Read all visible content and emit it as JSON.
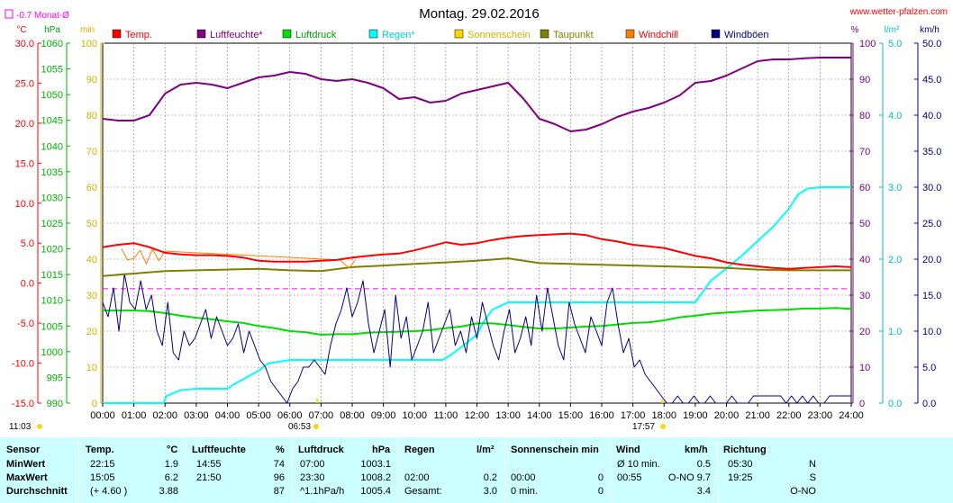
{
  "title": "Montag. 29.02.2016",
  "site": "www.wetter-pfalzen.com",
  "monat_label": "-0.7 Monat-Ø",
  "colors": {
    "temp": "#ff0000",
    "humidity": "#800080",
    "pressure": "#00dd00",
    "rain": "#00ffff",
    "sun": "#ffd700",
    "dew": "#808000",
    "windchill": "#ff8000",
    "gust": "#000080",
    "monat": "#ff00ff",
    "table_bg": "#ccffff"
  },
  "legend": [
    {
      "label": "Temp.",
      "color": "#ff0000",
      "text_color": "#ff0000"
    },
    {
      "label": "Luftfeuchte*",
      "color": "#800080",
      "text_color": "#800080"
    },
    {
      "label": "Luftdruck",
      "color": "#00dd00",
      "text_color": "#00a000"
    },
    {
      "label": "Regen*",
      "color": "#00ffff",
      "text_color": "#00d0d0"
    },
    {
      "label": "Sonnenschein",
      "color": "#ffd700",
      "text_color": "#d4b000"
    },
    {
      "label": "Taupunkt",
      "color": "#808000",
      "text_color": "#808000"
    },
    {
      "label": "Windchill",
      "color": "#ff8000",
      "text_color": "#ff0000"
    },
    {
      "label": "Windböen",
      "color": "#000080",
      "text_color": "#000080"
    }
  ],
  "axes": {
    "temp": {
      "unit": "°C",
      "ticks": [
        "30.0",
        "25.0",
        "20.0",
        "15.0",
        "10.0",
        "5.0",
        "0.0",
        "-5.0",
        "-10.0",
        "-15.0"
      ],
      "min": -15,
      "max": 30
    },
    "pressure": {
      "unit": "hPa",
      "ticks": [
        "1060",
        "1055",
        "1050",
        "1045",
        "1040",
        "1035",
        "1030",
        "1025",
        "1020",
        "1015",
        "1010",
        "1005",
        "1000",
        "995",
        "990"
      ],
      "min": 990,
      "max": 1060
    },
    "sun": {
      "unit": "min",
      "ticks": [
        "100",
        "90",
        "80",
        "70",
        "60",
        "50",
        "40",
        "30",
        "20",
        "10",
        "0"
      ],
      "min": 0,
      "max": 100
    },
    "humidity": {
      "unit": "%",
      "ticks": [
        "100",
        "90",
        "80",
        "70",
        "60",
        "50",
        "40",
        "30",
        "20",
        "10",
        "0"
      ],
      "min": 0,
      "max": 100
    },
    "rain": {
      "unit": "l/m²",
      "ticks": [
        "5.0",
        "4.0",
        "3.0",
        "2.0",
        "1.0",
        "0.0"
      ],
      "min": 0,
      "max": 5
    },
    "wind": {
      "unit": "km/h",
      "ticks": [
        "50.0",
        "45.0",
        "40.0",
        "35.0",
        "30.0",
        "25.0",
        "20.0",
        "15.0",
        "10.0",
        "5.0",
        "0.0"
      ],
      "min": 0,
      "max": 50
    }
  },
  "x_ticks": [
    "00:00",
    "01:00",
    "02:00",
    "03:00",
    "04:00",
    "05:00",
    "06:00",
    "07:00",
    "08:00",
    "09:00",
    "10:00",
    "11:00",
    "12:00",
    "13:00",
    "14:00",
    "15:00",
    "16:00",
    "17:00",
    "18:00",
    "19:00",
    "20:00",
    "21:00",
    "22:00",
    "23:00",
    "24:00"
  ],
  "sun_marks": {
    "day_length": "11:03",
    "sunrise": "06:53",
    "sunset": "17:57"
  },
  "chart_data": {
    "type": "line",
    "x_unit": "hour",
    "xlim": [
      0,
      24
    ],
    "monthly_avg_temp": -0.7,
    "series": [
      {
        "name": "Temp.",
        "axis": "temp",
        "x": [
          0,
          0.5,
          1,
          1.5,
          2,
          2.5,
          3,
          3.5,
          4,
          4.5,
          5,
          5.5,
          6,
          6.5,
          7,
          7.5,
          8,
          8.5,
          9,
          9.5,
          10,
          10.5,
          11,
          11.5,
          12,
          12.5,
          13,
          13.5,
          14,
          14.5,
          15,
          15.5,
          16,
          16.5,
          17,
          17.5,
          18,
          18.5,
          19,
          19.5,
          20,
          20.5,
          21,
          21.5,
          22,
          22.5,
          23,
          23.5,
          24
        ],
        "values": [
          4.5,
          4.8,
          5.0,
          4.5,
          3.8,
          3.6,
          3.5,
          3.5,
          3.4,
          3.2,
          2.8,
          2.7,
          2.7,
          2.7,
          2.8,
          2.9,
          3.2,
          3.4,
          3.6,
          3.7,
          4.1,
          4.6,
          5.1,
          4.8,
          5.0,
          5.4,
          5.7,
          5.9,
          6.0,
          6.1,
          6.2,
          6.0,
          5.5,
          5.2,
          4.8,
          4.6,
          4.4,
          3.9,
          3.4,
          3.1,
          2.6,
          2.3,
          2.1,
          1.9,
          1.8,
          1.9,
          2.0,
          2.1,
          2.0
        ]
      },
      {
        "name": "Luftfeuchte*",
        "axis": "humidity",
        "x": [
          0,
          0.5,
          1,
          1.5,
          2,
          2.5,
          3,
          3.5,
          4,
          4.5,
          5,
          5.5,
          6,
          6.5,
          7,
          7.5,
          8,
          8.5,
          9,
          9.5,
          10,
          10.5,
          11,
          11.5,
          12,
          12.5,
          13,
          13.5,
          14,
          14.5,
          15,
          15.5,
          16,
          16.5,
          17,
          17.5,
          18,
          18.5,
          19,
          19.5,
          20,
          20.5,
          21,
          21.5,
          22,
          22.5,
          23,
          23.5,
          24
        ],
        "values": [
          79,
          78.5,
          78.5,
          80,
          86,
          88.5,
          89,
          88.5,
          87.5,
          89,
          90.5,
          91,
          92,
          91.5,
          90,
          89.5,
          90,
          89,
          87.5,
          84.5,
          85,
          83.5,
          84,
          86,
          87,
          88,
          89,
          84.5,
          79,
          77.5,
          75.5,
          76,
          77.5,
          79.5,
          81,
          82,
          83.5,
          85.5,
          89,
          89.5,
          91,
          93,
          95,
          95.5,
          95.5,
          95.8,
          96,
          96,
          96
        ]
      },
      {
        "name": "Luftdruck",
        "axis": "pressure",
        "x": [
          0,
          0.5,
          1,
          1.5,
          2,
          2.5,
          3,
          3.5,
          4,
          4.5,
          5,
          5.5,
          6,
          6.5,
          7,
          7.5,
          8,
          8.5,
          9,
          9.5,
          10,
          10.5,
          11,
          11.5,
          12,
          12.5,
          13,
          13.5,
          14,
          14.5,
          15,
          15.5,
          16,
          16.5,
          17,
          17.5,
          18,
          18.5,
          19,
          19.5,
          20,
          20.5,
          21,
          21.5,
          22,
          22.5,
          23,
          23.5,
          24
        ],
        "values": [
          1008,
          1008,
          1008,
          1007.9,
          1007.5,
          1007,
          1006.6,
          1006.3,
          1005.9,
          1005.6,
          1005,
          1004.6,
          1004,
          1003.8,
          1003.3,
          1003.4,
          1003.4,
          1003.7,
          1003.8,
          1003.9,
          1004,
          1004.2,
          1004.6,
          1004.9,
          1005.5,
          1005.5,
          1005.2,
          1004.8,
          1004.5,
          1004.5,
          1004.7,
          1004.9,
          1005,
          1005.3,
          1005.6,
          1005.7,
          1006.1,
          1006.7,
          1007,
          1007.4,
          1007.6,
          1007.8,
          1008,
          1008.1,
          1008.2,
          1008.4,
          1008.4,
          1008.5,
          1008.3
        ]
      },
      {
        "name": "Regen*",
        "axis": "rain",
        "x": [
          0,
          1,
          1.95,
          2.05,
          2.5,
          3,
          4,
          4.2,
          5,
          5.3,
          6,
          7,
          8,
          10.9,
          11.2,
          11.5,
          12,
          12.2,
          12.5,
          12.8,
          13,
          14,
          17,
          18,
          19,
          19.3,
          19.5,
          20,
          20.5,
          21,
          21.5,
          22,
          22.3,
          22.6,
          23,
          24
        ],
        "values": [
          0,
          0,
          0,
          0.1,
          0.18,
          0.2,
          0.2,
          0.26,
          0.45,
          0.55,
          0.6,
          0.6,
          0.6,
          0.6,
          0.68,
          0.78,
          0.95,
          1.12,
          1.3,
          1.36,
          1.4,
          1.4,
          1.4,
          1.4,
          1.4,
          1.58,
          1.7,
          1.87,
          2.05,
          2.25,
          2.45,
          2.7,
          2.9,
          2.98,
          3.0,
          3.0
        ]
      },
      {
        "name": "Taupunkt",
        "axis": "temp",
        "x": [
          0,
          1,
          2,
          3,
          4,
          5,
          6,
          7,
          8,
          9,
          10,
          11,
          12,
          13,
          13.5,
          14,
          15,
          16,
          17,
          18,
          19,
          20,
          21,
          22,
          23,
          24
        ],
        "values": [
          0.9,
          1.2,
          1.5,
          1.6,
          1.7,
          1.8,
          1.6,
          1.5,
          2.0,
          2.2,
          2.4,
          2.6,
          2.8,
          3.1,
          2.8,
          2.5,
          2.4,
          2.3,
          2.2,
          2.1,
          2.0,
          1.9,
          1.7,
          1.6,
          1.6,
          1.6
        ]
      },
      {
        "name": "Windchill",
        "axis": "temp",
        "x": [
          0.6,
          0.8,
          1.0,
          1.2,
          1.4,
          1.6,
          1.8,
          2.0,
          7.6,
          7.9,
          8.1
        ],
        "values": [
          4.3,
          2.9,
          3.1,
          4.1,
          2.4,
          4.3,
          2.8,
          4.0,
          2.9,
          1.9,
          2.9
        ]
      },
      {
        "name": "Windböen",
        "axis": "wind",
        "values": [
          14,
          12,
          16,
          10,
          18,
          14,
          13,
          17,
          13,
          15,
          10,
          8,
          14,
          7,
          6,
          10,
          8,
          9,
          11,
          13,
          9,
          12,
          10,
          8,
          9,
          11,
          7,
          10,
          8,
          6,
          5,
          3,
          2,
          1,
          0,
          2,
          3,
          5,
          5,
          6,
          5,
          4,
          8,
          11,
          13,
          16,
          12,
          14,
          17,
          11,
          7,
          10,
          13,
          5,
          15,
          9,
          12,
          6,
          8,
          10,
          14,
          7,
          9,
          11,
          13,
          8,
          10,
          7,
          12,
          9,
          14,
          11,
          8,
          6,
          10,
          13,
          7,
          9,
          12,
          8,
          15,
          10,
          16,
          12,
          8,
          6,
          14,
          11,
          9,
          7,
          12,
          10,
          8,
          14,
          16,
          11,
          7,
          9,
          5,
          6,
          4,
          3,
          2,
          1,
          0,
          0,
          1,
          0,
          0,
          1,
          0,
          0,
          1,
          0,
          0,
          0,
          1,
          0,
          0,
          0,
          1,
          1,
          1,
          1,
          1,
          1,
          0,
          1,
          0,
          1,
          0,
          1,
          0,
          0,
          1,
          1,
          1,
          1,
          1
        ]
      }
    ]
  },
  "table": {
    "headers": {
      "sensor": "Sensor",
      "temp": "Temp.",
      "temp_unit": "°C",
      "hum": "Luftfeuchte",
      "hum_unit": "%",
      "press": "Luftdruck",
      "press_unit": "hPa",
      "rain": "Regen",
      "rain_unit": "l/m²",
      "sun": "Sonnenschein min",
      "wind": "Wind",
      "wind_unit": "km/h",
      "dir": "Richtung"
    },
    "rows": [
      {
        "label": "MinWert",
        "temp_time": "22:15",
        "temp_val": "1.9",
        "hum_time": "14:55",
        "hum_val": "74",
        "press_time": "07:00",
        "press_val": "1003.1",
        "rain_time": "",
        "rain_val": "",
        "sun_time": "",
        "sun_val": "",
        "wind_time": "Ø 10 min.",
        "wind_val": "0.5",
        "dir_time": "05:30",
        "dir_val": "N"
      },
      {
        "label": "MaxWert",
        "temp_time": "15:05",
        "temp_val": "6.2",
        "hum_time": "21:50",
        "hum_val": "96",
        "press_time": "23:30",
        "press_val": "1008.2",
        "rain_time": "02:00",
        "rain_val": "0.2",
        "sun_time": "00:00",
        "sun_val": "0",
        "wind_time": "00:55",
        "wind_val": "O-NO 9.7",
        "dir_time": "19:25",
        "dir_val": "S"
      },
      {
        "label": "Durchschnitt",
        "temp_time": "(+ 4.60 )",
        "temp_val": "3.88",
        "hum_time": "",
        "hum_val": "87",
        "press_time": "^1.1hPa/h",
        "press_val": "1005.4",
        "rain_time": "Gesamt:",
        "rain_val": "3.0",
        "sun_time": "0 min.",
        "sun_val": "0",
        "wind_time": "",
        "wind_val": "3.4",
        "dir_time": "",
        "dir_val": "O-NO"
      }
    ]
  }
}
